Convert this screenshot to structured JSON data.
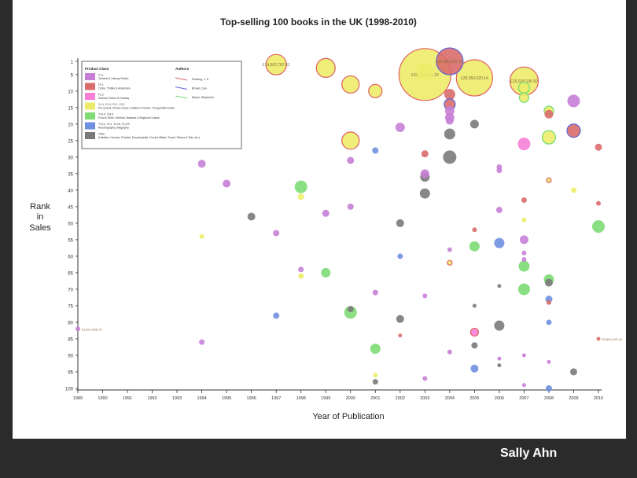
{
  "credit": "Sally Ahn",
  "chart_data": {
    "type": "scatter",
    "title": "Top-selling 100 books in the UK (1998-2010)",
    "xlabel": "Year of Publication",
    "ylabel": [
      "Rank",
      "in",
      "Sales"
    ],
    "xlim": [
      1989,
      2010
    ],
    "ylim": [
      1,
      100
    ],
    "y_inverted": true,
    "x_ticks": [
      1989,
      1990,
      1991,
      1992,
      1993,
      1994,
      1995,
      1996,
      1997,
      1998,
      1999,
      2000,
      2001,
      2002,
      2003,
      2004,
      2005,
      2006,
      2007,
      2008,
      2009,
      2010
    ],
    "y_ticks": [
      1,
      5,
      10,
      15,
      20,
      25,
      30,
      35,
      40,
      45,
      50,
      55,
      60,
      65,
      70,
      75,
      80,
      85,
      90,
      95,
      100
    ],
    "grid": false,
    "legend": {
      "placement": "top-left",
      "classes_title": "Product Class",
      "classes": [
        {
          "code": "F1.1",
          "desc": "General & Literary Fiction",
          "color": "#c77fd6"
        },
        {
          "code": "F2.1",
          "desc": "Crime, Thriller & Adventure",
          "color": "#d96b6b"
        },
        {
          "code": "F2.2",
          "desc": "Science Fiction & Fantasy",
          "color": "#f77fd8"
        },
        {
          "code": "Y1.1, Y1.3, Y2.1, Y2.2",
          "desc": "Pre-school, Picture books, Children's Fiction, Young Adult Fiction",
          "color": "#ecec6a"
        },
        {
          "code": "T14.4, T14.5",
          "desc": "Food & Drink: General, National & Regional Cuisine",
          "color": "#7ddc74"
        },
        {
          "code": "T4.14, T4.1, T4.15, T4.2.B",
          "desc": "Autobiography, Biography",
          "color": "#6f8fe0"
        },
        {
          "code": "Other",
          "desc": "(Hobbies, Humour, Puzzles, Encyclopedia, Current Affairs, Travel, Fitness & Diet, etc.)",
          "color": "#7a7a7a"
        }
      ],
      "authors_title": "Authors",
      "authors": [
        {
          "name": "Rowling, J. K.",
          "color": "#e06060"
        },
        {
          "name": "Brown, Dan",
          "color": "#5b66d8"
        },
        {
          "name": "Meyer, Stephenie",
          "color": "#6edc6e"
        }
      ]
    },
    "points": [
      {
        "x": 1989,
        "y": 82,
        "c": "F1.1",
        "s": 3,
        "label": "£3,617,806.79"
      },
      {
        "x": 1994,
        "y": 32,
        "c": "F1.1",
        "s": 5
      },
      {
        "x": 1994,
        "y": 54,
        "c": "Y",
        "s": 3
      },
      {
        "x": 1994,
        "y": 86,
        "c": "F1.1",
        "s": 3.5
      },
      {
        "x": 1995,
        "y": 38,
        "c": "F1.1",
        "s": 5
      },
      {
        "x": 1996,
        "y": 48,
        "c": "Other",
        "s": 5
      },
      {
        "x": 1997,
        "y": 2,
        "c": "Y",
        "s": 13,
        "label": "£14,002,787.81",
        "a": "Rowling"
      },
      {
        "x": 1997,
        "y": 53,
        "c": "F1.1",
        "s": 4
      },
      {
        "x": 1997,
        "y": 78,
        "c": "Bio",
        "s": 4
      },
      {
        "x": 1998,
        "y": 39,
        "c": "Food",
        "s": 8
      },
      {
        "x": 1998,
        "y": 42,
        "c": "Y",
        "s": 4
      },
      {
        "x": 1998,
        "y": 64,
        "c": "F1.1",
        "s": 3.5
      },
      {
        "x": 1998,
        "y": 66,
        "c": "Y",
        "s": 3.5
      },
      {
        "x": 1999,
        "y": 3,
        "c": "Y",
        "s": 12,
        "a": "Rowling"
      },
      {
        "x": 1999,
        "y": 47,
        "c": "F1.1",
        "s": 4.5
      },
      {
        "x": 1999,
        "y": 65,
        "c": "Food",
        "s": 6
      },
      {
        "x": 2000,
        "y": 8,
        "c": "Y",
        "s": 11,
        "a": "Rowling"
      },
      {
        "x": 2000,
        "y": 25,
        "c": "Y",
        "s": 11,
        "a": "Rowling"
      },
      {
        "x": 2000,
        "y": 31,
        "c": "F1.1",
        "s": 4.5
      },
      {
        "x": 2000,
        "y": 45,
        "c": "F1.1",
        "s": 4
      },
      {
        "x": 2000,
        "y": 76,
        "c": "Other",
        "s": 4
      },
      {
        "x": 2000,
        "y": 77,
        "c": "Food",
        "s": 8
      },
      {
        "x": 2001,
        "y": 10,
        "c": "Y",
        "s": 8.5,
        "a": "Rowling"
      },
      {
        "x": 2001,
        "y": 28,
        "c": "Bio",
        "s": 4
      },
      {
        "x": 2001,
        "y": 71,
        "c": "F1.1",
        "s": 3.5
      },
      {
        "x": 2001,
        "y": 88,
        "c": "Food",
        "s": 6.5
      },
      {
        "x": 2001,
        "y": 96,
        "c": "Y",
        "s": 3
      },
      {
        "x": 2001,
        "y": 98,
        "c": "Other",
        "s": 3.5
      },
      {
        "x": 2002,
        "y": 21,
        "c": "F1.1",
        "s": 6
      },
      {
        "x": 2002,
        "y": 50,
        "c": "Other",
        "s": 5
      },
      {
        "x": 2002,
        "y": 60,
        "c": "Bio",
        "s": 3.5
      },
      {
        "x": 2002,
        "y": 79,
        "c": "Other",
        "s": 5
      },
      {
        "x": 2002,
        "y": 84,
        "c": "F2.1",
        "s": 2.5
      },
      {
        "x": 2003,
        "y": 5,
        "c": "Y",
        "s": 33,
        "label": "£33,925,431.19",
        "a": "Rowling"
      },
      {
        "x": 2003,
        "y": 4,
        "c": "Y",
        "s": 11
      },
      {
        "x": 2003,
        "y": 29,
        "c": "F2.1",
        "s": 4.5
      },
      {
        "x": 2003,
        "y": 35,
        "c": "F1.1",
        "s": 5.5
      },
      {
        "x": 2003,
        "y": 36,
        "c": "Other",
        "s": 6
      },
      {
        "x": 2003,
        "y": 41,
        "c": "Other",
        "s": 6.5
      },
      {
        "x": 2003,
        "y": 72,
        "c": "F1.1",
        "s": 3
      },
      {
        "x": 2003,
        "y": 97,
        "c": "F1.1",
        "s": 3
      },
      {
        "x": 2004,
        "y": 1,
        "c": "F2.1",
        "s": 17,
        "label": "£20,991,651.51",
        "a": "Brown"
      },
      {
        "x": 2004,
        "y": 11,
        "c": "F2.1",
        "s": 7
      },
      {
        "x": 2004,
        "y": 14,
        "c": "F2.1",
        "s": 7,
        "a": "Brown"
      },
      {
        "x": 2004,
        "y": 16,
        "c": "F1.1",
        "s": 6
      },
      {
        "x": 2004,
        "y": 18,
        "c": "F1.1",
        "s": 6
      },
      {
        "x": 2004,
        "y": 19,
        "c": "F1.1",
        "s": 5
      },
      {
        "x": 2004,
        "y": 23,
        "c": "Other",
        "s": 7
      },
      {
        "x": 2004,
        "y": 30,
        "c": "Other",
        "s": 8.5
      },
      {
        "x": 2004,
        "y": 58,
        "c": "F1.1",
        "s": 3
      },
      {
        "x": 2004,
        "y": 62,
        "c": "Y",
        "s": 3,
        "a": "Rowling"
      },
      {
        "x": 2004,
        "y": 89,
        "c": "F1.1",
        "s": 3
      },
      {
        "x": 2005,
        "y": 6,
        "c": "Y",
        "s": 23,
        "label": "£28,050,020.14",
        "a": "Rowling"
      },
      {
        "x": 2005,
        "y": 20,
        "c": "Other",
        "s": 5.5
      },
      {
        "x": 2005,
        "y": 52,
        "c": "F2.1",
        "s": 3
      },
      {
        "x": 2005,
        "y": 57,
        "c": "Food",
        "s": 6.5
      },
      {
        "x": 2005,
        "y": 75,
        "c": "Other",
        "s": 2.5
      },
      {
        "x": 2005,
        "y": 83,
        "c": "F2.2",
        "s": 5,
        "a": "Rowling"
      },
      {
        "x": 2005,
        "y": 87,
        "c": "Other",
        "s": 4
      },
      {
        "x": 2005,
        "y": 94,
        "c": "Bio",
        "s": 5
      },
      {
        "x": 2006,
        "y": 33,
        "c": "F1.1",
        "s": 3.5
      },
      {
        "x": 2006,
        "y": 34,
        "c": "F1.1",
        "s": 3.5
      },
      {
        "x": 2006,
        "y": 46,
        "c": "F1.1",
        "s": 4
      },
      {
        "x": 2006,
        "y": 56,
        "c": "Bio",
        "s": 6.5
      },
      {
        "x": 2006,
        "y": 69,
        "c": "Other",
        "s": 2.5
      },
      {
        "x": 2006,
        "y": 81,
        "c": "Other",
        "s": 6.5
      },
      {
        "x": 2006,
        "y": 91,
        "c": "F1.1",
        "s": 2.5
      },
      {
        "x": 2006,
        "y": 93,
        "c": "Other",
        "s": 2.5
      },
      {
        "x": 2007,
        "y": 7,
        "c": "Y",
        "s": 18,
        "label": "£25,028,196.50",
        "a": "Rowling"
      },
      {
        "x": 2007,
        "y": 9,
        "c": "Y",
        "s": 7,
        "a": "Meyer"
      },
      {
        "x": 2007,
        "y": 12,
        "c": "Y",
        "s": 6,
        "a": "Meyer"
      },
      {
        "x": 2007,
        "y": 26,
        "c": "F2.2",
        "s": 8
      },
      {
        "x": 2007,
        "y": 43,
        "c": "F2.1",
        "s": 3.5
      },
      {
        "x": 2007,
        "y": 49,
        "c": "Y",
        "s": 3
      },
      {
        "x": 2007,
        "y": 55,
        "c": "F1.1",
        "s": 5.5
      },
      {
        "x": 2007,
        "y": 59,
        "c": "F1.1",
        "s": 3
      },
      {
        "x": 2007,
        "y": 61,
        "c": "F1.1",
        "s": 3
      },
      {
        "x": 2007,
        "y": 63,
        "c": "Food",
        "s": 7
      },
      {
        "x": 2007,
        "y": 70,
        "c": "Food",
        "s": 7.5
      },
      {
        "x": 2007,
        "y": 90,
        "c": "F1.1",
        "s": 2.5
      },
      {
        "x": 2007,
        "y": 99,
        "c": "F1.1",
        "s": 2.5
      },
      {
        "x": 2008,
        "y": 16,
        "c": "Y",
        "s": 6,
        "a": "Meyer"
      },
      {
        "x": 2008,
        "y": 17,
        "c": "F2.1",
        "s": 5.5
      },
      {
        "x": 2008,
        "y": 24,
        "c": "Y",
        "s": 8.5,
        "a": "Meyer"
      },
      {
        "x": 2008,
        "y": 37,
        "c": "Y",
        "s": 3,
        "a": "Rowling"
      },
      {
        "x": 2008,
        "y": 67,
        "c": "Food",
        "s": 6.5
      },
      {
        "x": 2008,
        "y": 68,
        "c": "Other",
        "s": 5
      },
      {
        "x": 2008,
        "y": 73,
        "c": "Bio",
        "s": 4.5
      },
      {
        "x": 2008,
        "y": 74,
        "c": "F2.1",
        "s": 3
      },
      {
        "x": 2008,
        "y": 80,
        "c": "Bio",
        "s": 3.5
      },
      {
        "x": 2008,
        "y": 92,
        "c": "F1.1",
        "s": 2.5
      },
      {
        "x": 2008,
        "y": 100,
        "c": "Bio",
        "s": 4
      },
      {
        "x": 2009,
        "y": 13,
        "c": "F1.1",
        "s": 8
      },
      {
        "x": 2009,
        "y": 22,
        "c": "F2.1",
        "s": 8.5,
        "a": "Brown"
      },
      {
        "x": 2009,
        "y": 40,
        "c": "Y",
        "s": 3.5
      },
      {
        "x": 2009,
        "y": 95,
        "c": "Other",
        "s": 4.5
      },
      {
        "x": 2010,
        "y": 27,
        "c": "F2.1",
        "s": 4.5
      },
      {
        "x": 2010,
        "y": 44,
        "c": "F2.1",
        "s": 3
      },
      {
        "x": 2010,
        "y": 51,
        "c": "Food",
        "s": 8
      },
      {
        "x": 2010,
        "y": 85,
        "c": "F2.1",
        "s": 2.5,
        "label": "£2,854,413.41"
      }
    ],
    "colors": {
      "F1.1": "#c77fd6",
      "F2.1": "#d96b6b",
      "F2.2": "#f77fd8",
      "Y": "#ecec6a",
      "Food": "#7ddc74",
      "Bio": "#6f8fe0",
      "Other": "#7a7a7a"
    },
    "author_colors": {
      "Rowling": "#e06060",
      "Brown": "#5b66d8",
      "Meyer": "#6edc6e"
    }
  }
}
